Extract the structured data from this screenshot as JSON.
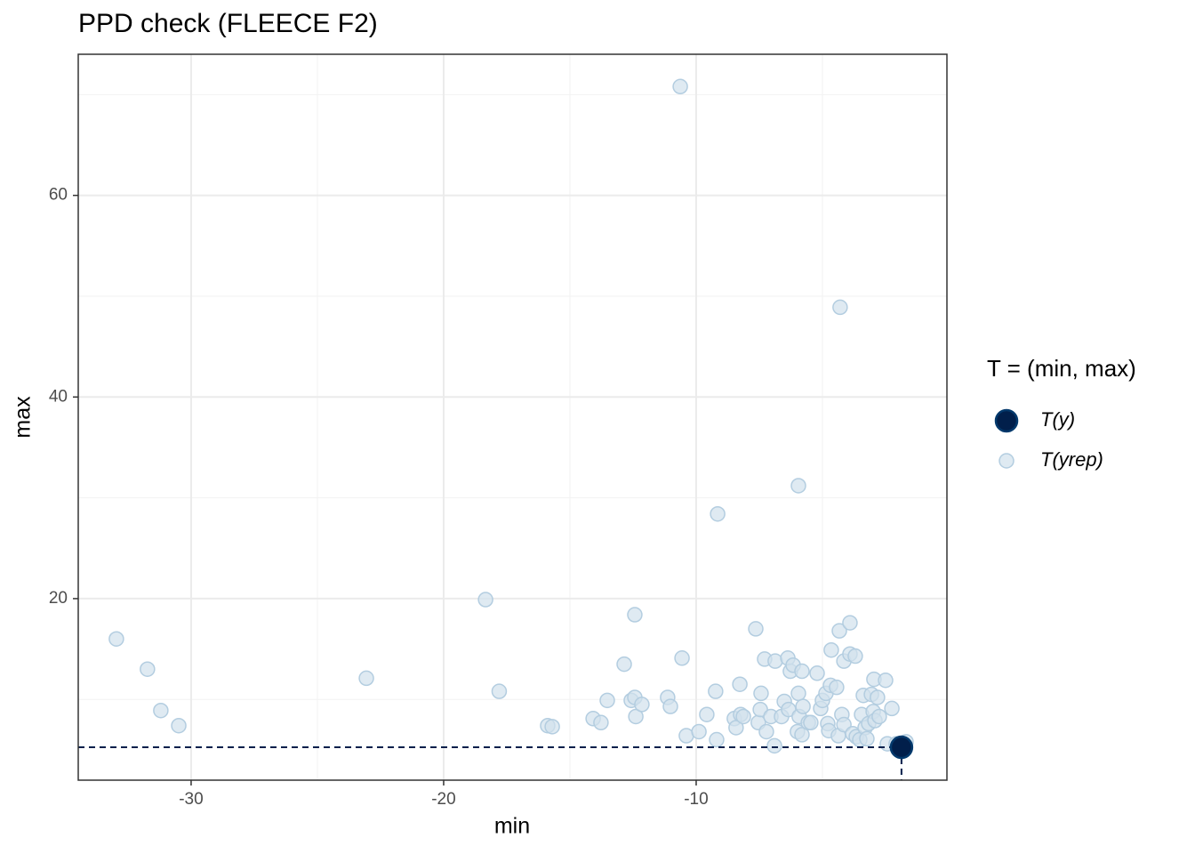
{
  "chart_data": {
    "type": "scatter",
    "title": "PPD check (FLEECE F2)",
    "x_label": "min",
    "y_label": "max",
    "legend_title": "T = (min, max)",
    "xlim": [
      -34.47,
      -0.07
    ],
    "ylim": [
      1.99,
      74.0
    ],
    "xticks": [
      -30,
      -20,
      -10
    ],
    "yticks": [
      20,
      40,
      60
    ],
    "x_minor_grid": [
      -25,
      -15,
      -5
    ],
    "y_minor_grid": [
      10,
      30,
      50,
      70
    ],
    "grid": true,
    "legend": "right",
    "series": [
      {
        "name": "T(y)",
        "color": "#011f4b",
        "stroke": "#03396c",
        "x": [
          -1.87
        ],
        "values": [
          5.25
        ]
      },
      {
        "name": "T(yrep)",
        "color": "#d1e1ec",
        "stroke": "#b3cde0",
        "x": [
          -32.96,
          -31.73,
          -31.2,
          -30.49,
          -23.06,
          -18.34,
          -17.8,
          -15.88,
          -15.7,
          -14.08,
          -13.77,
          -13.52,
          -12.85,
          -12.57,
          -12.43,
          -12.43,
          -12.39,
          -12.15,
          -11.13,
          -11.02,
          -10.63,
          -10.56,
          -10.39,
          -9.89,
          -9.58,
          -9.23,
          -9.19,
          -9.15,
          -8.49,
          -8.42,
          -8.27,
          -8.24,
          -8.13,
          -7.64,
          -7.54,
          -7.46,
          -7.43,
          -7.29,
          -7.22,
          -7.04,
          -6.9,
          -6.87,
          -6.62,
          -6.51,
          -6.37,
          -6.34,
          -6.27,
          -6.16,
          -5.99,
          -5.95,
          -5.95,
          -5.92,
          -5.81,
          -5.81,
          -5.77,
          -5.56,
          -5.46,
          -5.21,
          -5.07,
          -5.0,
          -4.86,
          -4.79,
          -4.75,
          -4.68,
          -4.65,
          -4.44,
          -4.37,
          -4.33,
          -4.3,
          -4.23,
          -4.15,
          -4.15,
          -3.91,
          -3.91,
          -3.8,
          -3.7,
          -3.66,
          -3.52,
          -3.45,
          -3.38,
          -3.31,
          -3.24,
          -3.17,
          -3.06,
          -2.99,
          -2.96,
          -2.92,
          -2.82,
          -2.75,
          -2.5,
          -2.43,
          -2.25,
          -1.69,
          -2.08
        ],
        "values": [
          16.0,
          13.0,
          8.9,
          7.4,
          12.1,
          19.9,
          10.8,
          7.4,
          7.3,
          8.1,
          7.7,
          9.9,
          13.5,
          9.9,
          10.2,
          18.4,
          8.3,
          9.5,
          10.2,
          9.3,
          70.8,
          14.1,
          6.4,
          6.8,
          8.5,
          10.8,
          6.0,
          28.4,
          8.1,
          7.2,
          11.5,
          8.5,
          8.3,
          17.0,
          7.7,
          9.0,
          10.6,
          14.0,
          6.8,
          8.3,
          5.4,
          13.8,
          8.3,
          9.8,
          14.1,
          9.0,
          12.8,
          13.4,
          6.8,
          10.6,
          31.2,
          8.3,
          12.8,
          6.5,
          9.3,
          7.7,
          7.7,
          12.6,
          9.1,
          9.9,
          10.6,
          7.6,
          6.9,
          11.4,
          14.9,
          11.2,
          6.4,
          16.8,
          48.9,
          8.5,
          13.8,
          7.5,
          17.6,
          14.5,
          6.6,
          14.3,
          6.3,
          6.0,
          8.5,
          10.4,
          7.2,
          6.1,
          7.6,
          10.5,
          8.8,
          12.0,
          7.9,
          10.2,
          8.3,
          11.9,
          5.6,
          9.1,
          5.8,
          5.6
        ]
      }
    ]
  }
}
